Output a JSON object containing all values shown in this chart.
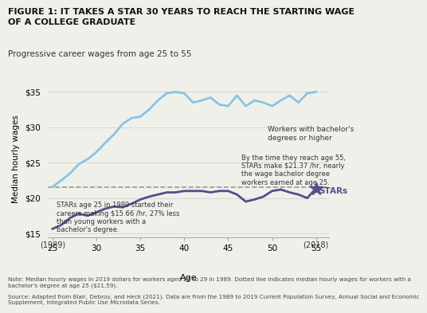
{
  "title": "FIGURE 1: IT TAKES A STAR 30 YEARS TO REACH THE STARTING WAGE\nOF A COLLEGE GRADUATE",
  "subtitle": "Progressive career wages from age 25 to 55",
  "xlabel": "Age",
  "ylabel": "Median hourly wages",
  "ylim": [
    14.5,
    36.5
  ],
  "xlim": [
    24.5,
    56.5
  ],
  "yticks": [
    15,
    20,
    25,
    30,
    35
  ],
  "xticks": [
    25,
    30,
    35,
    40,
    45,
    50,
    55
  ],
  "dashed_line_y": 21.59,
  "bachelor_color": "#89c4e1",
  "stars_color": "#5b4a8a",
  "dashed_color": "#888888",
  "note_text": "Note: Median hourly wages in 2019 dollars for workers aged 25 to 29 in 1989. Dotted line indicates median hourly wages for workers with a\nbachelor's degree at age 25 ($21.59).",
  "source_text": "Source: Adapted from Blair, Debroy, and Heck (2021). Data are from the 1989 to 2019 Current Population Survey, Annual Social and Economic\nSupplement, Integrated Public Use Microdata Series.",
  "bachelor_ages": [
    25,
    26,
    27,
    28,
    29,
    30,
    31,
    32,
    33,
    34,
    35,
    36,
    37,
    38,
    39,
    40,
    41,
    42,
    43,
    44,
    45,
    46,
    47,
    48,
    49,
    50,
    51,
    52,
    53,
    54,
    55
  ],
  "bachelor_wages": [
    21.59,
    22.5,
    23.5,
    24.8,
    25.5,
    26.5,
    27.8,
    29.0,
    30.5,
    31.3,
    31.5,
    32.5,
    33.8,
    34.8,
    35.0,
    34.8,
    33.5,
    33.8,
    34.2,
    33.2,
    33.0,
    34.5,
    33.0,
    33.8,
    33.5,
    33.0,
    33.8,
    34.5,
    33.5,
    34.8,
    35.0
  ],
  "stars_ages": [
    25,
    26,
    27,
    28,
    29,
    30,
    31,
    32,
    33,
    34,
    35,
    36,
    37,
    38,
    39,
    40,
    41,
    42,
    43,
    44,
    45,
    46,
    47,
    48,
    49,
    50,
    51,
    52,
    53,
    54,
    55
  ],
  "stars_wages": [
    15.66,
    16.2,
    17.2,
    17.8,
    17.5,
    18.0,
    18.5,
    18.8,
    18.7,
    19.2,
    19.8,
    20.2,
    20.5,
    20.8,
    20.8,
    21.0,
    21.0,
    21.0,
    20.8,
    21.0,
    21.0,
    20.5,
    19.5,
    19.8,
    20.2,
    21.0,
    21.2,
    20.8,
    20.5,
    20.0,
    21.37
  ],
  "annotation_bachelor": "Workers with bachelor's\ndegrees or higher",
  "annotation_stars_label": "STARs",
  "annotation_stars_text": "STARs age 25 in 1989 started their\ncareers making $15.66 /hr, 27% less\nthan young workers with a\nbachelor's degree.",
  "annotation_age55_text": "By the time they reach age 55,\nSTARs make $21.37 /hr, nearly\nthe wage bachelor degree\nworkers earned at age 25.",
  "bg_color": "#f0f0eb"
}
